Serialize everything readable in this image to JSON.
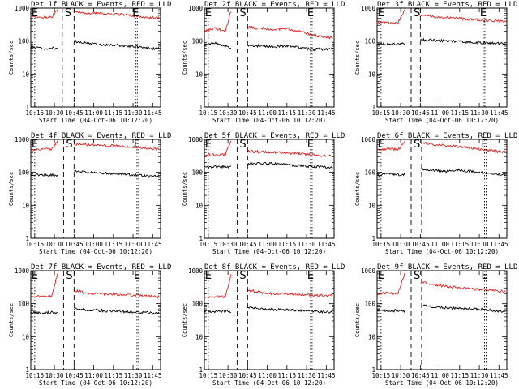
{
  "chart_data": [
    {
      "panel": "det-1f",
      "type": "line",
      "title": "Det 1f BLACK = Events, RED = LLD",
      "xlabel": "Start Time (04-Oct-06 10:12:20)",
      "ylabel": "Counts/sec",
      "yscale": "log",
      "ylim": [
        1,
        1000
      ],
      "x_tick_labels": [
        "10:15",
        "10:30",
        "10:45",
        "11:00",
        "11:15",
        "11:30",
        "11:45"
      ],
      "y_tick_labels": [
        "1",
        "10",
        "100",
        "1000"
      ],
      "markers": [
        {
          "label": "E",
          "time": "10:15"
        },
        {
          "label": "S",
          "time": "10:36"
        },
        {
          "label": "E",
          "time": "11:32"
        }
      ],
      "series": [
        {
          "name": "Events",
          "color": "#000000",
          "x": [
            "10:12",
            "10:20",
            "10:28",
            "10:33",
            "10:40",
            "10:45",
            "10:55",
            "11:05",
            "11:15",
            "11:25",
            "11:35",
            "11:45",
            "11:50"
          ],
          "y": [
            65,
            60,
            62,
            60,
            null,
            100,
            85,
            78,
            75,
            72,
            65,
            60,
            58
          ]
        },
        {
          "name": "LLD",
          "color": "#e02020",
          "x": [
            "10:12",
            "10:20",
            "10:28",
            "10:33",
            "10:40",
            "10:45",
            "10:55",
            "11:05",
            "11:15",
            "11:25",
            "11:35",
            "11:45",
            "11:50"
          ],
          "y": [
            560,
            520,
            530,
            1000,
            null,
            760,
            710,
            680,
            650,
            620,
            540,
            510,
            505
          ]
        }
      ]
    },
    {
      "panel": "det-2f",
      "type": "line",
      "title": "Det 2f BLACK = Events, RED = LLD",
      "xlabel": "Start Time (04-Oct-06 10:12:20)",
      "ylabel": "Counts/sec",
      "yscale": "log",
      "ylim": [
        1,
        1000
      ],
      "x_tick_labels": [
        "10:15",
        "10:30",
        "10:45",
        "11:00",
        "11:15",
        "11:30",
        "11:45"
      ],
      "y_tick_labels": [
        "1",
        "10",
        "100",
        "1000"
      ],
      "markers": [
        {
          "label": "E",
          "time": "10:15"
        },
        {
          "label": "S",
          "time": "10:37"
        },
        {
          "label": "E",
          "time": "11:33"
        }
      ],
      "series": [
        {
          "name": "Events",
          "color": "#000000",
          "x": [
            "10:12",
            "10:20",
            "10:28",
            "10:33",
            "10:40",
            "10:45",
            "10:55",
            "11:05",
            "11:15",
            "11:25",
            "11:35",
            "11:45",
            "11:50"
          ],
          "y": [
            75,
            85,
            70,
            60,
            null,
            75,
            70,
            68,
            72,
            62,
            55,
            58,
            60
          ]
        },
        {
          "name": "LLD",
          "color": "#e02020",
          "x": [
            "10:12",
            "10:20",
            "10:28",
            "10:33",
            "10:40",
            "10:45",
            "10:55",
            "11:05",
            "11:15",
            "11:25",
            "11:35",
            "11:45",
            "11:50"
          ],
          "y": [
            210,
            240,
            200,
            1000,
            null,
            260,
            240,
            230,
            240,
            190,
            150,
            130,
            125
          ]
        }
      ]
    },
    {
      "panel": "det-3f",
      "type": "line",
      "title": "Det 3f BLACK = Events, RED = LLD",
      "xlabel": "Start Time (04-Oct-06 10:12:20)",
      "ylabel": "Counts/sec",
      "yscale": "log",
      "ylim": [
        1,
        1000
      ],
      "x_tick_labels": [
        "10:15",
        "10:30",
        "10:45",
        "11:00",
        "11:15",
        "11:30",
        "11:45"
      ],
      "y_tick_labels": [
        "1",
        "10",
        "100",
        "1000"
      ],
      "markers": [
        {
          "label": "E",
          "time": "10:15"
        },
        {
          "label": "S",
          "time": "10:38"
        },
        {
          "label": "E",
          "time": "11:33"
        }
      ],
      "series": [
        {
          "name": "Events",
          "color": "#000000",
          "x": [
            "10:12",
            "10:20",
            "10:28",
            "10:34",
            "10:41",
            "10:45",
            "10:55",
            "11:05",
            "11:15",
            "11:25",
            "11:35",
            "11:45",
            "11:50"
          ],
          "y": [
            85,
            80,
            82,
            85,
            null,
            110,
            105,
            100,
            95,
            92,
            88,
            85,
            83
          ]
        },
        {
          "name": "LLD",
          "color": "#e02020",
          "x": [
            "10:12",
            "10:20",
            "10:28",
            "10:34",
            "10:41",
            "10:45",
            "10:55",
            "11:05",
            "11:15",
            "11:25",
            "11:35",
            "11:45",
            "11:50"
          ],
          "y": [
            370,
            360,
            365,
            1000,
            null,
            600,
            560,
            520,
            480,
            450,
            420,
            400,
            395
          ]
        }
      ]
    },
    {
      "panel": "det-4f",
      "type": "line",
      "title": "Det 4f BLACK = Events, RED = LLD",
      "xlabel": "Start Time (04-Oct-06 10:12:20)",
      "ylabel": "Counts/sec",
      "yscale": "log",
      "ylim": [
        1,
        1000
      ],
      "x_tick_labels": [
        "10:15",
        "10:30",
        "10:45",
        "11:00",
        "11:15",
        "11:30",
        "11:45"
      ],
      "y_tick_labels": [
        "1",
        "10",
        "100",
        "1000"
      ],
      "markers": [
        {
          "label": "E",
          "time": "10:15"
        },
        {
          "label": "S",
          "time": "10:37"
        },
        {
          "label": "E",
          "time": "11:33"
        }
      ],
      "series": [
        {
          "name": "Events",
          "color": "#000000",
          "x": [
            "10:12",
            "10:20",
            "10:28",
            "10:33",
            "10:41",
            "10:45",
            "10:55",
            "11:05",
            "11:15",
            "11:25",
            "11:35",
            "11:45",
            "11:50"
          ],
          "y": [
            80,
            85,
            82,
            80,
            null,
            110,
            100,
            95,
            92,
            88,
            80,
            75,
            75
          ]
        },
        {
          "name": "LLD",
          "color": "#e02020",
          "x": [
            "10:12",
            "10:20",
            "10:28",
            "10:33",
            "10:41",
            "10:45",
            "10:55",
            "11:05",
            "11:15",
            "11:25",
            "11:35",
            "11:45",
            "11:50"
          ],
          "y": [
            480,
            520,
            500,
            1000,
            null,
            720,
            680,
            660,
            640,
            610,
            560,
            520,
            510
          ]
        }
      ]
    },
    {
      "panel": "det-5f",
      "type": "line",
      "title": "Det 5f BLACK = Events, RED = LLD",
      "xlabel": "Start Time (04-Oct-06 10:12:20)",
      "ylabel": "Counts/sec",
      "yscale": "log",
      "ylim": [
        1,
        1000
      ],
      "x_tick_labels": [
        "10:15",
        "10:30",
        "10:45",
        "11:00",
        "11:15",
        "11:30",
        "11:45"
      ],
      "y_tick_labels": [
        "1",
        "10",
        "100",
        "1000"
      ],
      "markers": [
        {
          "label": "E",
          "time": "10:15"
        },
        {
          "label": "S",
          "time": "10:37"
        },
        {
          "label": "E",
          "time": "11:33"
        }
      ],
      "series": [
        {
          "name": "Events",
          "color": "#000000",
          "x": [
            "10:12",
            "10:20",
            "10:28",
            "10:33",
            "10:41",
            "10:45",
            "10:55",
            "11:05",
            "11:15",
            "11:25",
            "11:35",
            "11:45",
            "11:50"
          ],
          "y": [
            140,
            150,
            148,
            150,
            null,
            180,
            190,
            185,
            170,
            160,
            150,
            140,
            138
          ]
        },
        {
          "name": "LLD",
          "color": "#e02020",
          "x": [
            "10:12",
            "10:20",
            "10:28",
            "10:33",
            "10:41",
            "10:45",
            "10:55",
            "11:05",
            "11:15",
            "11:25",
            "11:35",
            "11:45",
            "11:50"
          ],
          "y": [
            330,
            350,
            340,
            1000,
            null,
            430,
            420,
            410,
            390,
            370,
            340,
            320,
            315
          ]
        }
      ]
    },
    {
      "panel": "det-6f",
      "type": "line",
      "title": "Det 6f BLACK = Events, RED = LLD",
      "xlabel": "Start Time (04-Oct-06 10:12:20)",
      "ylabel": "Counts/sec",
      "yscale": "log",
      "ylim": [
        1,
        1000
      ],
      "x_tick_labels": [
        "10:15",
        "10:30",
        "10:45",
        "11:00",
        "11:15",
        "11:30",
        "11:45"
      ],
      "y_tick_labels": [
        "1",
        "10",
        "100",
        "1000"
      ],
      "markers": [
        {
          "label": "E",
          "time": "10:15"
        },
        {
          "label": "S",
          "time": "10:38"
        },
        {
          "label": "E",
          "time": "11:34"
        }
      ],
      "series": [
        {
          "name": "Events",
          "color": "#000000",
          "x": [
            "10:12",
            "10:20",
            "10:28",
            "10:34",
            "10:42",
            "10:46",
            "10:55",
            "11:05",
            "11:15",
            "11:25",
            "11:35",
            "11:45",
            "11:50"
          ],
          "y": [
            80,
            90,
            85,
            88,
            null,
            130,
            115,
            110,
            120,
            105,
            95,
            88,
            86
          ]
        },
        {
          "name": "LLD",
          "color": "#e02020",
          "x": [
            "10:12",
            "10:20",
            "10:28",
            "10:34",
            "10:42",
            "10:46",
            "10:55",
            "11:05",
            "11:15",
            "11:25",
            "11:35",
            "11:45",
            "11:50"
          ],
          "y": [
            470,
            520,
            480,
            1000,
            null,
            800,
            700,
            640,
            600,
            540,
            480,
            420,
            410
          ]
        }
      ]
    },
    {
      "panel": "det-7f",
      "type": "line",
      "title": "Det 7f BLACK = Events, RED = LLD",
      "xlabel": "Start Time (04-Oct-06 10:12:20)",
      "ylabel": "Counts/sec",
      "yscale": "log",
      "ylim": [
        1,
        1000
      ],
      "x_tick_labels": [
        "10:15",
        "10:30",
        "10:45",
        "11:00",
        "11:15",
        "11:30",
        "11:45"
      ],
      "y_tick_labels": [
        "1",
        "10",
        "100",
        "1000"
      ],
      "markers": [
        {
          "label": "E",
          "time": "10:15"
        },
        {
          "label": "S",
          "time": "10:37"
        },
        {
          "label": "E",
          "time": "11:33"
        }
      ],
      "series": [
        {
          "name": "Events",
          "color": "#000000",
          "x": [
            "10:12",
            "10:20",
            "10:28",
            "10:33",
            "10:41",
            "10:45",
            "10:55",
            "11:05",
            "11:15",
            "11:25",
            "11:35",
            "11:45",
            "11:50"
          ],
          "y": [
            55,
            52,
            55,
            50,
            null,
            70,
            65,
            62,
            60,
            58,
            55,
            52,
            52
          ]
        },
        {
          "name": "LLD",
          "color": "#e02020",
          "x": [
            "10:12",
            "10:20",
            "10:28",
            "10:33",
            "10:41",
            "10:45",
            "10:55",
            "11:05",
            "11:15",
            "11:25",
            "11:35",
            "11:45",
            "11:50"
          ],
          "y": [
            170,
            165,
            170,
            1000,
            null,
            250,
            210,
            200,
            195,
            185,
            175,
            165,
            160
          ]
        }
      ]
    },
    {
      "panel": "det-8f",
      "type": "line",
      "title": "Det 8f BLACK = Events, RED = LLD",
      "xlabel": "Start Time (04-Oct-06 10:12:20)",
      "ylabel": "Counts/sec",
      "yscale": "log",
      "ylim": [
        1,
        1000
      ],
      "x_tick_labels": [
        "10:15",
        "10:30",
        "10:45",
        "11:00",
        "11:15",
        "11:30",
        "11:45"
      ],
      "y_tick_labels": [
        "1",
        "10",
        "100",
        "1000"
      ],
      "markers": [
        {
          "label": "E",
          "time": "10:15"
        },
        {
          "label": "S",
          "time": "10:37"
        },
        {
          "label": "E",
          "time": "11:33"
        }
      ],
      "series": [
        {
          "name": "Events",
          "color": "#000000",
          "x": [
            "10:12",
            "10:20",
            "10:28",
            "10:33",
            "10:41",
            "10:45",
            "10:55",
            "11:05",
            "11:15",
            "11:25",
            "11:35",
            "11:45",
            "11:50"
          ],
          "y": [
            60,
            58,
            60,
            58,
            null,
            80,
            70,
            66,
            65,
            62,
            58,
            56,
            55
          ]
        },
        {
          "name": "LLD",
          "color": "#e02020",
          "x": [
            "10:12",
            "10:20",
            "10:28",
            "10:33",
            "10:41",
            "10:45",
            "10:55",
            "11:05",
            "11:15",
            "11:25",
            "11:35",
            "11:45",
            "11:50"
          ],
          "y": [
            160,
            165,
            160,
            1000,
            null,
            260,
            220,
            200,
            195,
            190,
            180,
            175,
            175
          ]
        }
      ]
    },
    {
      "panel": "det-9f",
      "type": "line",
      "title": "Det 9f BLACK = Events, RED = LLD",
      "xlabel": "Start Time (04-Oct-06 10:12:20)",
      "ylabel": "Counts/sec",
      "yscale": "log",
      "ylim": [
        1,
        1000
      ],
      "x_tick_labels": [
        "10:15",
        "10:30",
        "10:45",
        "11:00",
        "11:15",
        "11:30",
        "11:45"
      ],
      "y_tick_labels": [
        "1",
        "10",
        "100",
        "1000"
      ],
      "markers": [
        {
          "label": "E",
          "time": "10:15"
        },
        {
          "label": "S",
          "time": "10:38"
        },
        {
          "label": "E",
          "time": "11:34"
        }
      ],
      "series": [
        {
          "name": "Events",
          "color": "#000000",
          "x": [
            "10:12",
            "10:20",
            "10:28",
            "10:34",
            "10:42",
            "10:46",
            "10:55",
            "11:05",
            "11:15",
            "11:25",
            "11:35",
            "11:45",
            "11:50"
          ],
          "y": [
            65,
            60,
            62,
            60,
            null,
            90,
            80,
            75,
            72,
            70,
            65,
            60,
            58
          ]
        },
        {
          "name": "LLD",
          "color": "#e02020",
          "x": [
            "10:12",
            "10:20",
            "10:28",
            "10:34",
            "10:42",
            "10:46",
            "10:55",
            "11:05",
            "11:15",
            "11:25",
            "11:35",
            "11:45",
            "11:50"
          ],
          "y": [
            200,
            210,
            205,
            1000,
            null,
            450,
            370,
            330,
            300,
            280,
            260,
            240,
            235
          ]
        }
      ]
    }
  ]
}
